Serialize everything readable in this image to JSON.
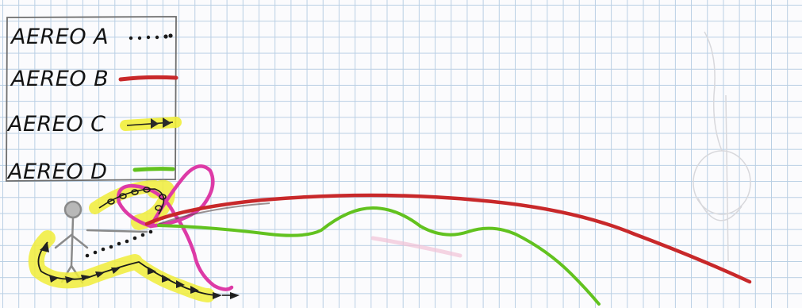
{
  "legend": {
    "items": [
      {
        "label": "AEREO A",
        "style": "dotted",
        "color": "#1a1a1a"
      },
      {
        "label": "AEREO B",
        "style": "solid",
        "color": "#c8282a"
      },
      {
        "label": "AEREO C",
        "style": "arrows-on-highlighter",
        "color": "#1a1a1a",
        "highlight": "#f1ee3a"
      },
      {
        "label": "AEREO D",
        "style": "solid",
        "color": "#62c21f"
      }
    ]
  },
  "colors": {
    "paper": "#fbfbfd",
    "grid": "#b9cfe4",
    "ink": "#1a1a1a",
    "red": "#c8282a",
    "green": "#62c21f",
    "yellow": "#f1ee3a",
    "magenta": "#dd3aa6",
    "pencil": "#8a8a8a"
  }
}
